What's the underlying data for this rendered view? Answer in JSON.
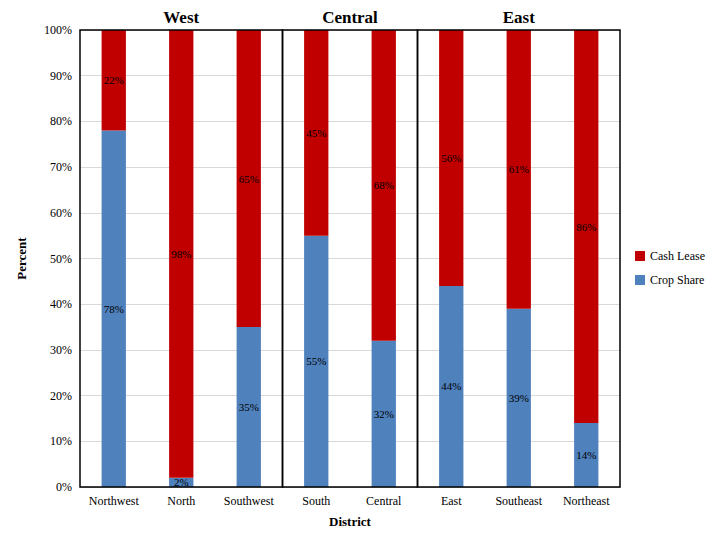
{
  "chart_data": {
    "type": "bar",
    "stacked": true,
    "data_labels": true,
    "grid": true,
    "legend": "right",
    "x_label": "District",
    "y_label": "Percent",
    "categories": [
      "Northwest",
      "North",
      "Southwest",
      "South",
      "Central",
      "East",
      "Southeast",
      "Northeast"
    ],
    "groups": [
      {
        "label": "West",
        "members": [
          "Northwest",
          "North",
          "Southwest"
        ]
      },
      {
        "label": "Central",
        "members": [
          "South",
          "Central"
        ]
      },
      {
        "label": "East",
        "members": [
          "East",
          "Southeast",
          "Northeast"
        ]
      }
    ],
    "series": [
      {
        "name": "Crop Share",
        "color": "#4F81BD",
        "values": [
          78,
          2,
          35,
          55,
          32,
          44,
          39,
          14
        ],
        "value_labels": [
          "78%",
          "2%",
          "35%",
          "55%",
          "32%",
          "44%",
          "39%",
          "14%"
        ]
      },
      {
        "name": "Cash Lease",
        "color": "#C00000",
        "values": [
          22,
          98,
          65,
          45,
          68,
          56,
          61,
          86
        ],
        "value_labels": [
          "22%",
          "98%",
          "65%",
          "45%",
          "68%",
          "56%",
          "61%",
          "86%"
        ]
      }
    ],
    "ylim": [
      0,
      100
    ],
    "yticks": [
      {
        "value": 0,
        "label": "0%"
      },
      {
        "value": 10,
        "label": "10%"
      },
      {
        "value": 20,
        "label": "20%"
      },
      {
        "value": 30,
        "label": "30%"
      },
      {
        "value": 40,
        "label": "40%"
      },
      {
        "value": 50,
        "label": "50%"
      },
      {
        "value": 60,
        "label": "60%"
      },
      {
        "value": 70,
        "label": "70%"
      },
      {
        "value": 80,
        "label": "80%"
      },
      {
        "value": 90,
        "label": "90%"
      },
      {
        "value": 100,
        "label": "100%"
      }
    ]
  }
}
